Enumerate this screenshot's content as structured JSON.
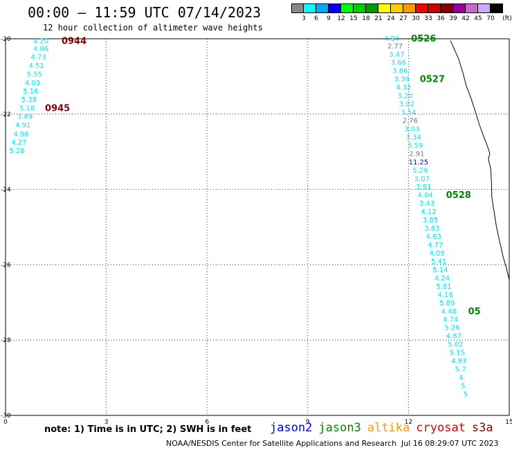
{
  "header": {
    "title": "00:00 – 11:59 UTC 07/14/2023",
    "subtitle": "12 hour collection of altimeter wave heights"
  },
  "color_scale": {
    "unit": "(ft)",
    "colors": [
      "#888888",
      "#00ffff",
      "#00aaff",
      "#0000ff",
      "#00ff00",
      "#00cc00",
      "#009900",
      "#ffff00",
      "#ffcc00",
      "#ff9900",
      "#ff0000",
      "#cc0000",
      "#880000",
      "#990099",
      "#cc66cc",
      "#ccaaff",
      "#000000"
    ],
    "labels": [
      "3",
      "6",
      "9",
      "12",
      "15",
      "18",
      "21",
      "24",
      "27",
      "30",
      "33",
      "36",
      "39",
      "42",
      "45",
      "70"
    ]
  },
  "axes": {
    "lat_ticks": [
      "-20",
      "-22",
      "-24",
      "-26",
      "-28",
      "-30"
    ],
    "lon_ticks": [
      "0",
      "3",
      "6",
      "9",
      "12",
      "15"
    ]
  },
  "tracks": [
    {
      "id": "west",
      "color": "#00e5ee",
      "time_labels": [
        {
          "label": "0944",
          "color": "#880000"
        },
        {
          "label": "0945",
          "color": "#880000"
        }
      ],
      "points": [
        {
          "lat": -20.05,
          "lon": 1.05,
          "value": "4.20"
        },
        {
          "lat": -20.25,
          "lon": 1.05,
          "value": "4.86"
        },
        {
          "lat": -20.47,
          "lon": 0.98,
          "value": "4.73"
        },
        {
          "lat": -20.7,
          "lon": 0.92,
          "value": "4.51"
        },
        {
          "lat": -20.93,
          "lon": 0.86,
          "value": "5.55"
        },
        {
          "lat": -21.16,
          "lon": 0.8,
          "value": "4.03"
        },
        {
          "lat": -21.38,
          "lon": 0.75,
          "value": "5.16"
        },
        {
          "lat": -21.6,
          "lon": 0.7,
          "value": "5.38"
        },
        {
          "lat": -21.83,
          "lon": 0.64,
          "value": "5.18"
        },
        {
          "lat": -22.05,
          "lon": 0.58,
          "value": "3.89"
        },
        {
          "lat": -22.28,
          "lon": 0.52,
          "value": "4.91"
        },
        {
          "lat": -22.52,
          "lon": 0.46,
          "value": "4.96"
        },
        {
          "lat": -22.74,
          "lon": 0.4,
          "value": "4.27"
        },
        {
          "lat": -22.96,
          "lon": 0.34,
          "value": "5.28"
        }
      ]
    },
    {
      "id": "east",
      "color": "#00e5ee",
      "time_labels": [
        {
          "label": "0526",
          "color": "#008800"
        },
        {
          "label": "0527",
          "color": "#008800"
        },
        {
          "label": "0528",
          "color": "#008800"
        },
        {
          "label": "05",
          "color": "#008800"
        }
      ],
      "points": [
        {
          "lat": -19.98,
          "lon": 11.5,
          "value": "4.94",
          "color": "#00e5ee"
        },
        {
          "lat": -20.18,
          "lon": 11.6,
          "value": "2.77",
          "color": "#777777"
        },
        {
          "lat": -20.4,
          "lon": 11.65,
          "value": "3.47",
          "color": "#00e5ee"
        },
        {
          "lat": -20.62,
          "lon": 11.7,
          "value": "3.66",
          "color": "#00e5ee"
        },
        {
          "lat": -20.84,
          "lon": 11.75,
          "value": "3.86",
          "color": "#00e5ee"
        },
        {
          "lat": -21.06,
          "lon": 11.8,
          "value": "3.39",
          "color": "#00e5ee"
        },
        {
          "lat": -21.28,
          "lon": 11.85,
          "value": "4.32",
          "color": "#00e5ee"
        },
        {
          "lat": -21.5,
          "lon": 11.9,
          "value": "3.20",
          "color": "#00e5ee"
        },
        {
          "lat": -21.72,
          "lon": 11.95,
          "value": "3.02",
          "color": "#00e5ee"
        },
        {
          "lat": -21.94,
          "lon": 12.0,
          "value": "3.54",
          "color": "#00e5ee"
        },
        {
          "lat": -22.16,
          "lon": 12.05,
          "value": "2.76",
          "color": "#777777"
        },
        {
          "lat": -22.38,
          "lon": 12.1,
          "value": "3.03",
          "color": "#00e5ee"
        },
        {
          "lat": -22.6,
          "lon": 12.15,
          "value": "3.34",
          "color": "#00e5ee"
        },
        {
          "lat": -22.82,
          "lon": 12.2,
          "value": "3.59",
          "color": "#00e5ee"
        },
        {
          "lat": -23.04,
          "lon": 12.25,
          "value": "2.91",
          "color": "#777777"
        },
        {
          "lat": -23.26,
          "lon": 12.3,
          "value": "11.25",
          "color": "#0000cc"
        },
        {
          "lat": -23.48,
          "lon": 12.35,
          "value": "5.29",
          "color": "#00e5ee"
        },
        {
          "lat": -23.7,
          "lon": 12.4,
          "value": "3.07",
          "color": "#00e5ee"
        },
        {
          "lat": -23.92,
          "lon": 12.45,
          "value": "3.91",
          "color": "#00e5ee"
        },
        {
          "lat": -24.14,
          "lon": 12.5,
          "value": "4.04",
          "color": "#00e5ee"
        },
        {
          "lat": -24.36,
          "lon": 12.55,
          "value": "3.43",
          "color": "#00e5ee"
        },
        {
          "lat": -24.58,
          "lon": 12.6,
          "value": "4.12",
          "color": "#00e5ee"
        },
        {
          "lat": -24.8,
          "lon": 12.65,
          "value": "3.85",
          "color": "#00e5ee"
        },
        {
          "lat": -25.02,
          "lon": 12.7,
          "value": "3.83",
          "color": "#00e5ee"
        },
        {
          "lat": -25.24,
          "lon": 12.75,
          "value": "4.63",
          "color": "#00e5ee"
        },
        {
          "lat": -25.46,
          "lon": 12.8,
          "value": "4.77",
          "color": "#00e5ee"
        },
        {
          "lat": -25.68,
          "lon": 12.85,
          "value": "4.09",
          "color": "#00e5ee"
        },
        {
          "lat": -25.9,
          "lon": 12.9,
          "value": "5.41",
          "color": "#00e5ee"
        },
        {
          "lat": -26.12,
          "lon": 12.95,
          "value": "5.14",
          "color": "#00e5ee"
        },
        {
          "lat": -26.34,
          "lon": 13.0,
          "value": "4.24",
          "color": "#00e5ee"
        },
        {
          "lat": -26.56,
          "lon": 13.05,
          "value": "5.81",
          "color": "#00e5ee"
        },
        {
          "lat": -26.78,
          "lon": 13.1,
          "value": "4.16",
          "color": "#00e5ee"
        },
        {
          "lat": -27.0,
          "lon": 13.15,
          "value": "5.89",
          "color": "#00e5ee"
        },
        {
          "lat": -27.22,
          "lon": 13.2,
          "value": "4.48",
          "color": "#00e5ee"
        },
        {
          "lat": -27.44,
          "lon": 13.25,
          "value": "4.74",
          "color": "#00e5ee"
        },
        {
          "lat": -27.66,
          "lon": 13.3,
          "value": "5.26",
          "color": "#00e5ee"
        },
        {
          "lat": -27.88,
          "lon": 13.35,
          "value": "4.67",
          "color": "#00e5ee"
        },
        {
          "lat": -28.1,
          "lon": 13.4,
          "value": "5.02",
          "color": "#00e5ee"
        },
        {
          "lat": -28.32,
          "lon": 13.45,
          "value": "5.15",
          "color": "#00e5ee"
        },
        {
          "lat": -28.54,
          "lon": 13.5,
          "value": "4.83",
          "color": "#00e5ee"
        },
        {
          "lat": -28.76,
          "lon": 13.55,
          "value": "5.7",
          "color": "#00e5ee"
        },
        {
          "lat": -28.98,
          "lon": 13.6,
          "value": "4.",
          "color": "#00e5ee"
        },
        {
          "lat": -29.2,
          "lon": 13.65,
          "value": "5.",
          "color": "#00e5ee"
        },
        {
          "lat": -29.42,
          "lon": 13.7,
          "value": "5",
          "color": "#00e5ee"
        }
      ]
    }
  ],
  "coastline": [
    [
      13.25,
      -20.05
    ],
    [
      13.35,
      -20.25
    ],
    [
      13.5,
      -20.55
    ],
    [
      13.62,
      -20.9
    ],
    [
      13.72,
      -21.25
    ],
    [
      13.85,
      -21.55
    ],
    [
      13.98,
      -21.9
    ],
    [
      14.1,
      -22.25
    ],
    [
      14.22,
      -22.55
    ],
    [
      14.35,
      -22.85
    ],
    [
      14.42,
      -23.05
    ],
    [
      14.38,
      -23.2
    ],
    [
      14.45,
      -23.45
    ],
    [
      14.47,
      -23.8
    ],
    [
      14.48,
      -24.2
    ],
    [
      14.55,
      -24.6
    ],
    [
      14.62,
      -25.0
    ],
    [
      14.72,
      -25.4
    ],
    [
      14.82,
      -25.8
    ],
    [
      14.92,
      -26.1
    ],
    [
      15.0,
      -26.4
    ],
    [
      15.05,
      -26.8
    ],
    [
      15.1,
      -27.2
    ],
    [
      15.15,
      -27.6
    ],
    [
      15.2,
      -28.0
    ],
    [
      15.28,
      -28.4
    ]
  ],
  "legend": {
    "note": "note:  1) Time is in UTC;  2) SWH is in feet",
    "satellites": [
      {
        "name": "jason2",
        "color": "#0000cc"
      },
      {
        "name": "jason3",
        "color": "#008800"
      },
      {
        "name": "altika",
        "color": "#ff9900"
      },
      {
        "name": "cryosat",
        "color": "#dd0000"
      },
      {
        "name": "s3a",
        "color": "#880000"
      }
    ]
  },
  "footer": {
    "credit": "NOAA/NESDIS Center for Satellite Applications and Research",
    "date": "Jul 16 08:29:07 UTC 2023"
  }
}
